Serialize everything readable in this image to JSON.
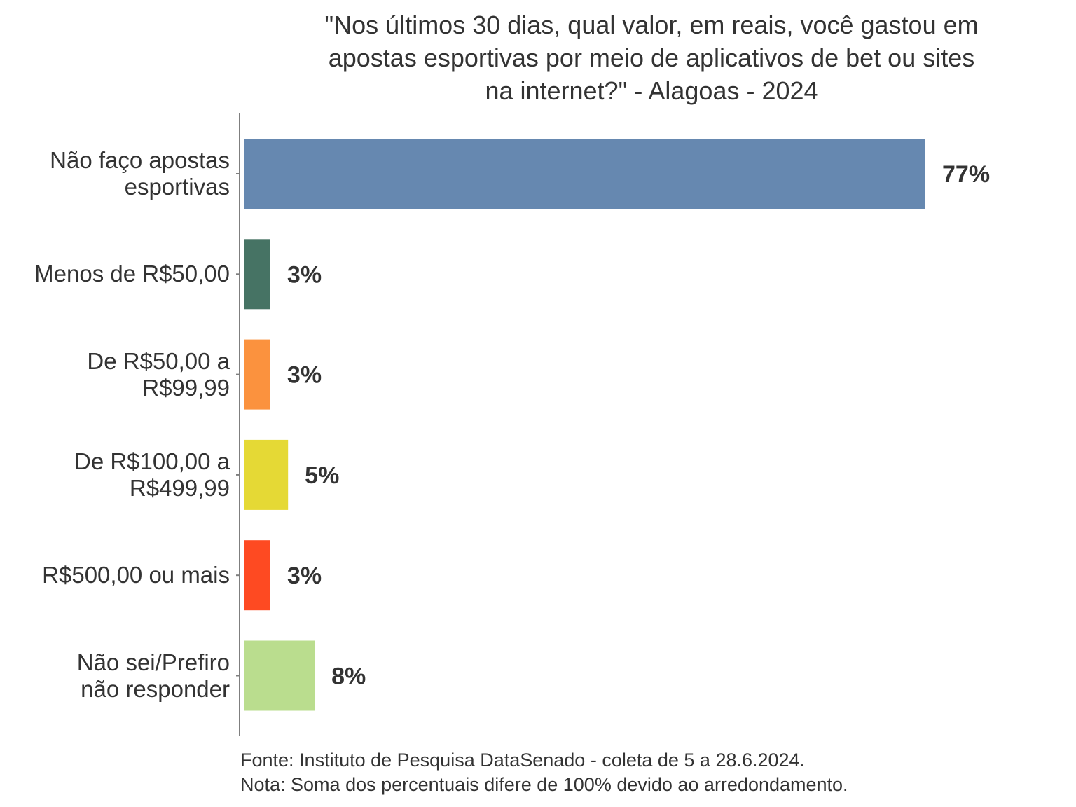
{
  "chart_data": {
    "type": "bar",
    "orientation": "horizontal",
    "title_lines": [
      "\"Nos últimos 30 dias, qual valor, em reais, você gastou em",
      "apostas esportivas por meio de aplicativos de bet ou sites",
      "na internet?\" - Alagoas - 2024"
    ],
    "categories": [
      [
        "Não faço apostas",
        "esportivas"
      ],
      [
        "Menos de R$50,00"
      ],
      [
        "De R$50,00 a",
        "R$99,99"
      ],
      [
        "De R$100,00 a",
        "R$499,99"
      ],
      [
        "R$500,00 ou mais"
      ],
      [
        "Não sei/Prefiro",
        "não responder"
      ]
    ],
    "values": [
      77,
      3,
      3,
      5,
      3,
      8
    ],
    "value_labels": [
      "77%",
      "3%",
      "3%",
      "5%",
      "3%",
      "8%"
    ],
    "colors": [
      "#6688b0",
      "#467364",
      "#fb923e",
      "#e5d935",
      "#fe4a22",
      "#badd8e"
    ],
    "xlim": [
      0,
      100
    ],
    "grid": false,
    "legend": "none"
  },
  "footnotes": [
    "Fonte: Instituto de Pesquisa DataSenado - coleta de 5 a 28.6.2024.",
    "Nota: Soma dos percentuais difere de 100% devido ao arredondamento."
  ]
}
